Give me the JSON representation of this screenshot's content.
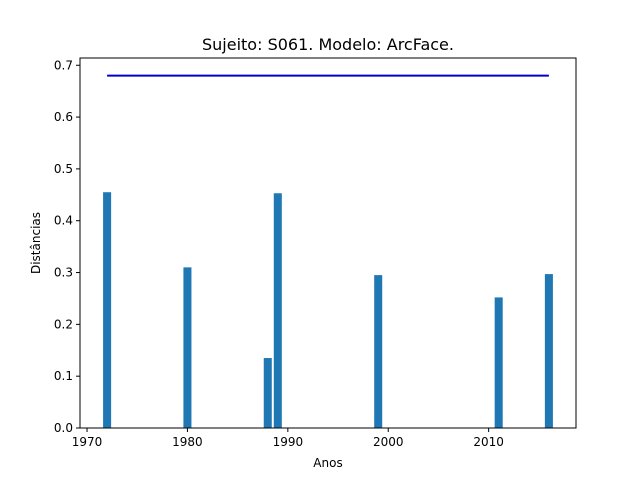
{
  "chart_data": {
    "type": "bar",
    "title": "Sujeito: S061. Modelo: ArcFace.",
    "xlabel": "Anos",
    "ylabel": "Distâncias",
    "xlim": [
      1969.3,
      2018.7
    ],
    "ylim": [
      0,
      0.714
    ],
    "x_ticks": [
      1970,
      1980,
      1990,
      2000,
      2010
    ],
    "x_tick_labels": [
      "1970",
      "1980",
      "1990",
      "2000",
      "2010"
    ],
    "y_ticks": [
      0.0,
      0.1,
      0.2,
      0.3,
      0.4,
      0.5,
      0.6,
      0.7
    ],
    "y_tick_labels": [
      "0.0",
      "0.1",
      "0.2",
      "0.3",
      "0.4",
      "0.5",
      "0.6",
      "0.7"
    ],
    "bar_width_years": 0.8,
    "bar_color": "#1f77b4",
    "x": [
      1972,
      1980,
      1988,
      1989,
      1999,
      2011,
      2016
    ],
    "values": [
      0.455,
      0.31,
      0.135,
      0.453,
      0.295,
      0.252,
      0.297
    ],
    "threshold": {
      "y": 0.68,
      "x_start": 1972,
      "x_end": 2016,
      "color": "#0000cc"
    },
    "grid": false
  }
}
